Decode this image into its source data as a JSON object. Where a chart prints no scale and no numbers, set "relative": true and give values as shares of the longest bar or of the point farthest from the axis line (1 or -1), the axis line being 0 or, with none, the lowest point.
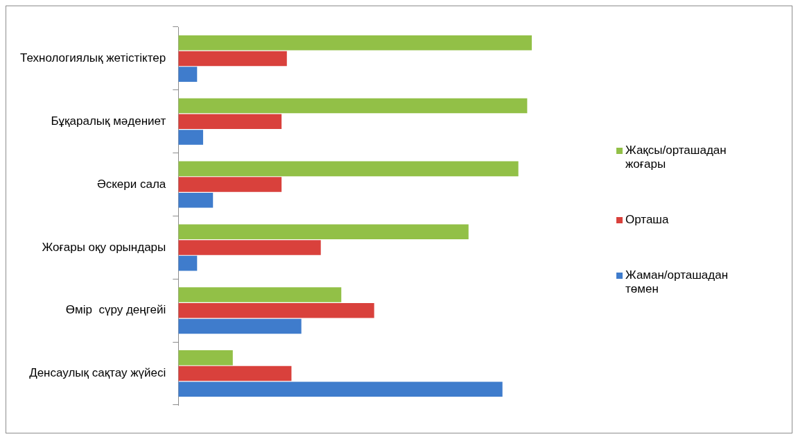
{
  "chart_data": {
    "type": "bar",
    "orientation": "horizontal",
    "relative": true,
    "legend": "right",
    "categories": [
      "Технологиялық жетістіктер",
      "Бұқаралық мәдениет",
      "Әскери сала",
      "Жоғары оқу орындары",
      "Өмір  сүру деңгейі",
      "Денсаулық сақтау жүйесі"
    ],
    "series": [
      {
        "name": "Жақсы/орташадан жоғары",
        "color": "#92c047",
        "values": [
          1,
          0.987,
          0.962,
          0.821,
          0.461,
          0.154
        ]
      },
      {
        "name": "Орташа",
        "color": "#d9413c",
        "values": [
          0.307,
          0.292,
          0.292,
          0.403,
          0.554,
          0.32
        ]
      },
      {
        "name": "Жаман/орташадан төмен",
        "color": "#3f7ccc",
        "values": [
          0.053,
          0.07,
          0.098,
          0.053,
          0.348,
          0.917
        ]
      }
    ]
  }
}
